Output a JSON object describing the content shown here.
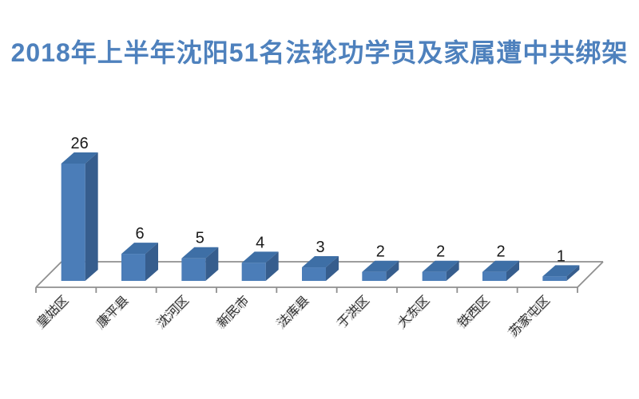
{
  "page": {
    "background_color": "#ffffff"
  },
  "chart_data": {
    "type": "bar",
    "style": "3d-column",
    "title": "2018年上半年沈阳51名法轮功学员及家属遭中共绑架",
    "categories": [
      "皇姑区",
      "康平县",
      "沈河区",
      "新民市",
      "法库县",
      "于洪区",
      "大东区",
      "铁西区",
      "苏家屯区"
    ],
    "values": [
      26,
      6,
      5,
      4,
      3,
      2,
      2,
      2,
      1
    ],
    "data_labels_visible": true,
    "xlabel": "",
    "ylabel": "",
    "legend": "none",
    "grid": false,
    "ylim": [
      0,
      26
    ],
    "colors": {
      "title": "#4e81bd",
      "bar_front": "#4b7db8",
      "bar_top": "#3e6fa6",
      "bar_side": "#365d8d",
      "axis_line": "#8f8f8f",
      "value_label": "#1a1a1a",
      "category_label": "#333333",
      "category_label_shadow": "#bbbbbb"
    }
  }
}
